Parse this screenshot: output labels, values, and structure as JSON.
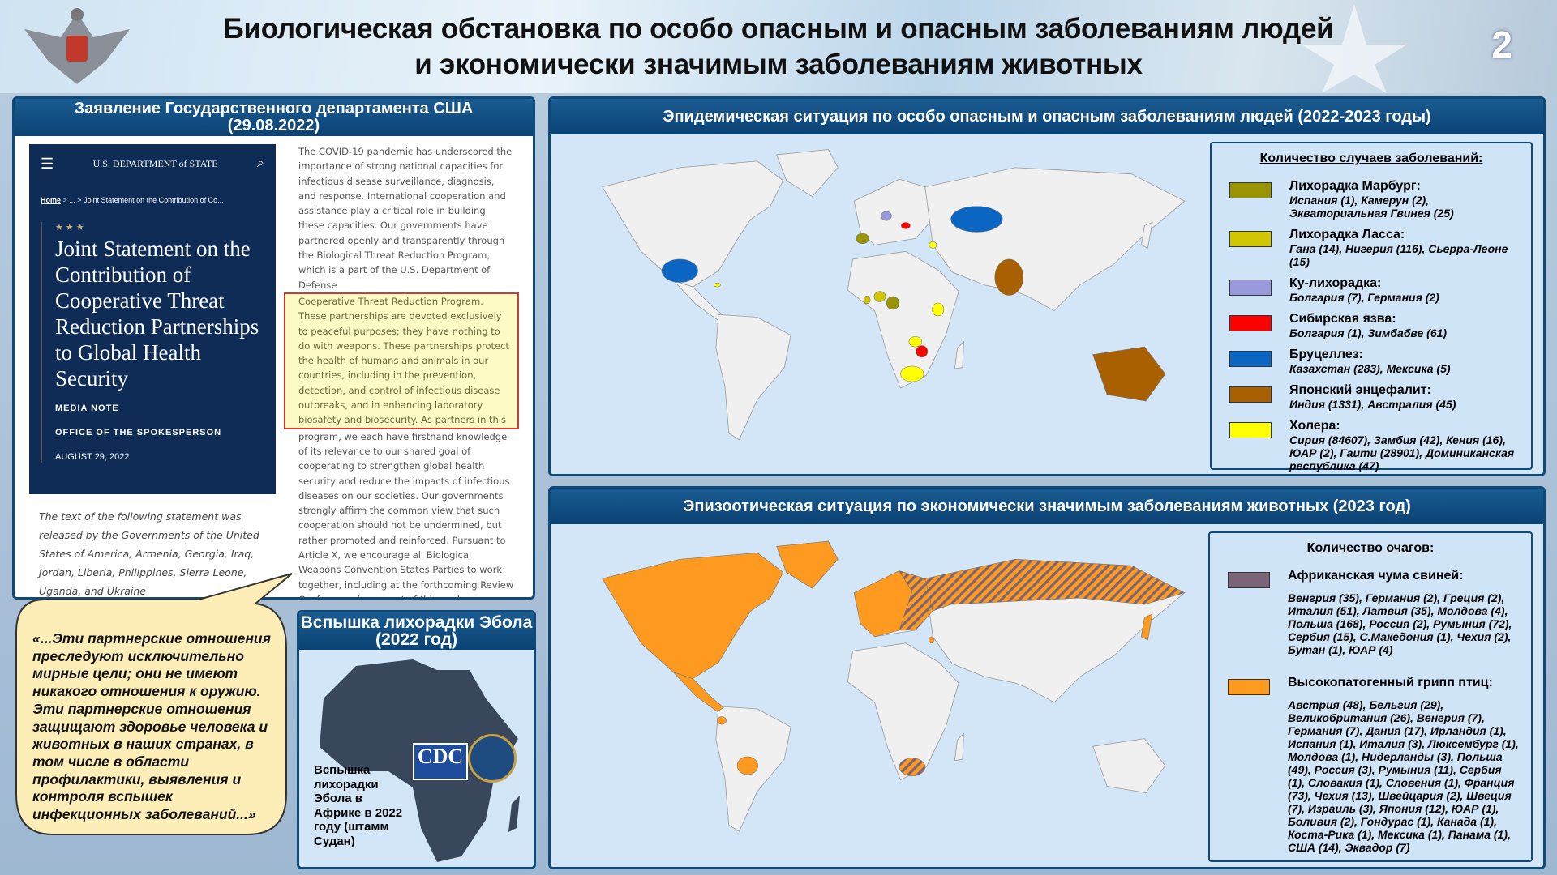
{
  "header": {
    "title_line1": "Биологическая обстановка по особо опасным и опасным заболеваниям людей",
    "title_line2": "и экономически значимым заболеваниям животных",
    "page_number": "2"
  },
  "statement_panel": {
    "title": "Заявление Государственного департамента США (29.08.2022)",
    "site": {
      "org": "U.S. DEPARTMENT of STATE",
      "breadcrumb_home": "Home",
      "breadcrumb_sep": ">   ...   >",
      "breadcrumb_current": "Joint Statement on the Contribution of Co...",
      "stars": "★ ★ ★",
      "headline": "Joint Statement on the Contribution of Cooperative Threat Reduction Partnerships to Global Health Security",
      "media_note": "MEDIA NOTE",
      "office": "OFFICE OF THE SPOKESPERSON",
      "date": "AUGUST 29, 2022"
    },
    "intro": "The text of the following statement was released by the Governments of the United States of America, Armenia, Georgia, Iraq, Jordan, Liberia, Philippines, Sierra Leone, Uganda, and Ukraine",
    "body_before": "The COVID-19 pandemic has underscored the importance of strong national capacities for infectious disease surveillance, diagnosis, and response. International cooperation and assistance play a critical role in building these capacities. Our governments have partnered openly and transparently through the Biological Threat Reduction Program, which is a part of the U.S. Department of Defense",
    "body_highlight": "Cooperative Threat Reduction Program. These partnerships are devoted exclusively to peaceful purposes; they have nothing to do with weapons. These partnerships protect the health of humans and animals in our countries, including in the prevention, detection, and control of infectious disease outbreaks, and in enhancing laboratory biosafety and biosecurity. As partners in this",
    "body_after": "program, we each have firsthand knowledge of its relevance to our shared goal of cooperating to strengthen global health security and reduce the impacts of infectious diseases on our societies. Our governments strongly affirm the common view that such cooperation should not be undermined, but rather promoted and reinforced. Pursuant to Article X, we encourage all Biological Weapons Convention States Parties to work together, including at the forthcoming Review Conference, in support of this goal."
  },
  "quote": "«...Эти партнерские отношения преследуют исключительно мирные цели; они не имеют никакого отношения к оружию. Эти партнерские отношения защищают здоровье человека и животных в наших странах, в том числе в области профилактики, выявления и контроля вспышек инфекционных заболеваний...»",
  "ebola": {
    "title": "Вспышка лихорадки Эбола (2022 год)",
    "caption": "Вспышка лихорадки Эбола в Африке в 2022 году (штамм Судан)",
    "logo_text": "CDC"
  },
  "human_panel": {
    "title": "Эпидемическая ситуация по особо опасным и опасным заболеваниям людей (2022-2023 годы)",
    "legend_title": "Количество случаев заболеваний:",
    "items": [
      {
        "name": "Лихорадка Марбург:",
        "detail": "Испания (1), Камерун (2), Экваториальная Гвинея (25)",
        "color": "#9a9400"
      },
      {
        "name": "Лихорадка Ласса:",
        "detail": "Гана (14), Нигерия (116), Сьерра-Леоне (15)",
        "color": "#d1c700"
      },
      {
        "name": "Ку-лихорадка:",
        "detail": "Болгария (7), Германия (2)",
        "color": "#9999dd"
      },
      {
        "name": "Сибирская язва:",
        "detail": "Болгария (1), Зимбабве (61)",
        "color": "#ff0000"
      },
      {
        "name": "Бруцеллез:",
        "detail": "Казахстан (283), Мексика (5)",
        "color": "#0b66c3"
      },
      {
        "name": "Японский энцефалит:",
        "detail": "Индия (1331), Австралия (45)",
        "color": "#a86000"
      },
      {
        "name": "Холера:",
        "detail": "Сирия (84607), Замбия (42), Кения (16), ЮАР (2), Гаити (28901), Доминиканская республика (47)",
        "color": "#ffff00"
      }
    ]
  },
  "animal_panel": {
    "title": "Эпизоотическая ситуация по экономически значимым заболеваниям животных (2023 год)",
    "legend_title": "Количество очагов:",
    "items": [
      {
        "name": "Африканская чума свиней:",
        "detail": "Венгрия (35), Германия (2), Греция (2), Италия (51), Латвия (35), Молдова (4), Польша (168), Россия (2), Румыния (72), Сербия (15), С.Македония (1), Чехия (2), Бутан (1), ЮАР (4)",
        "color": "#7a6578"
      },
      {
        "name": "Высокопатогенный грипп птиц:",
        "detail": "Австрия (48), Бельгия (29), Великобритания (26), Венгрия (7), Германия (7), Дания (17), Ирландия (1), Испания (1), Италия (3), Люксембург (1), Молдова (1), Нидерланды (3), Польша (49), Россия (3), Румыния (11), Сербия (1), Словакия (1), Словения (1), Франция (73), Чехия (13), Швейцария (2), Швеция (7), Израиль (3), Япония (12), ЮАР (1), Боливия (2), Гондурас (1), Канада (1), Коста-Рика (1), Мексика (1), Панама (1), США (14), Эквадор (7)",
        "color": "#ff9a20"
      }
    ]
  },
  "colors": {
    "navy": "#0d4a7a",
    "land": "#f0f0f0",
    "ocean": "#d3e6f7"
  }
}
